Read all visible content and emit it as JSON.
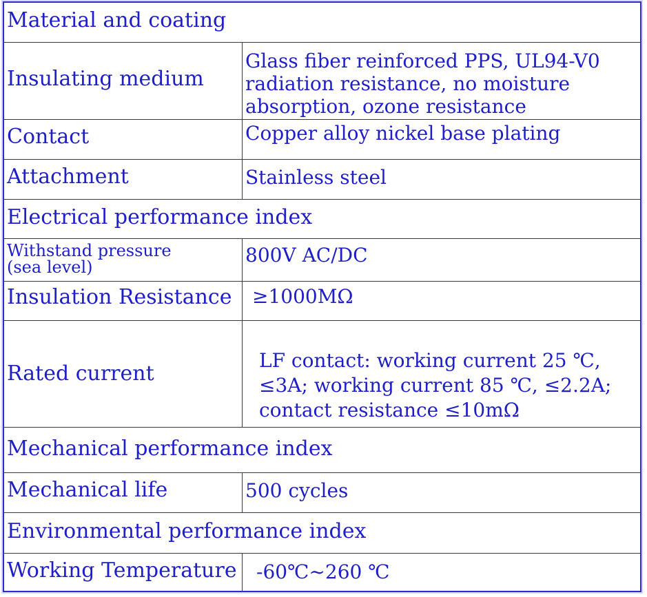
{
  "sections": {
    "material": {
      "title": "Material and coating",
      "rows": [
        {
          "label": "Insulating medium",
          "value_lines": [
            "Glass fiber reinforced PPS, UL94-V0",
            "radiation resistance, no moisture",
            "absorption, ozone resistance"
          ]
        },
        {
          "label": "Contact",
          "value": "Copper alloy nickel base plating"
        },
        {
          "label": "Attachment",
          "value": "Stainless steel"
        }
      ]
    },
    "electrical": {
      "title": "Electrical performance index",
      "rows": [
        {
          "label_lines": [
            "Withstand pressure",
            "(sea level)"
          ],
          "value": "800V AC/DC"
        },
        {
          "label": "Insulation Resistance",
          "value": "≥1000MΩ"
        },
        {
          "label": "Rated current",
          "value_lines": [
            "LF contact: working current 25 ℃,",
            "≤3A; working current 85 ℃, ≤2.2A;",
            "contact resistance ≤10mΩ"
          ]
        }
      ]
    },
    "mechanical": {
      "title": "Mechanical performance index",
      "rows": [
        {
          "label": "Mechanical life",
          "value": "500 cycles"
        }
      ]
    },
    "environmental": {
      "title": "Environmental performance index",
      "rows": [
        {
          "label": "Working Temperature",
          "value": "-60℃~260 ℃"
        }
      ]
    }
  },
  "colors": {
    "text": "#1f1fc8",
    "frame": "#2b2bd0",
    "grid": "#3a3a3a"
  }
}
